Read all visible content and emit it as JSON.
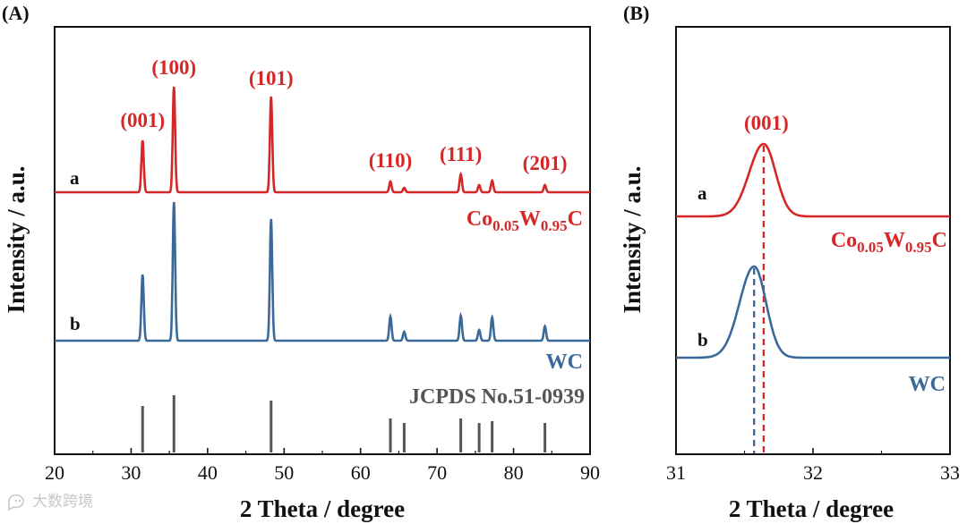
{
  "colors": {
    "red": "#d62728",
    "blue": "#3b6a9a",
    "gray": "#555555",
    "axis": "#111111"
  },
  "watermark": "大数跨境",
  "watermark_icon": "chat-bubble-icon",
  "chart_data": [
    {
      "panel": "(A)",
      "type": "line",
      "xlabel": "2 Theta / degree",
      "ylabel": "Intensity / a.u.",
      "xlim": [
        20,
        90
      ],
      "xticks": [
        20,
        30,
        40,
        50,
        60,
        70,
        80,
        90
      ],
      "yticks": [],
      "series": [
        {
          "id": "a",
          "letter": "a",
          "name_main": "Co",
          "name_sub1": "0.05",
          "name_mid": "W",
          "name_sub2": "0.95",
          "name_end": "C",
          "color": "#d62728",
          "baseline": 62,
          "width_deg": 0.22,
          "peaks": [
            [
              31.5,
              58
            ],
            [
              35.6,
              118
            ],
            [
              48.3,
              107
            ],
            [
              63.9,
              12
            ],
            [
              65.7,
              5
            ],
            [
              73.1,
              20
            ],
            [
              75.5,
              8
            ],
            [
              77.2,
              13
            ],
            [
              84.1,
              8
            ]
          ]
        },
        {
          "id": "b",
          "letter": "b",
          "name": "WC",
          "color": "#3b6a9a",
          "baseline": 30,
          "width_deg": 0.22,
          "peaks": [
            [
              31.5,
              74
            ],
            [
              35.6,
              155
            ],
            [
              48.3,
              136
            ],
            [
              63.9,
              27
            ],
            [
              65.7,
              10
            ],
            [
              73.1,
              28
            ],
            [
              75.5,
              12
            ],
            [
              77.2,
              26
            ],
            [
              84.1,
              16
            ]
          ]
        }
      ],
      "hkl_labels": [
        {
          "label": "(001)",
          "x": 31.5
        },
        {
          "label": "(100)",
          "x": 35.6
        },
        {
          "label": "(101)",
          "x": 48.3
        },
        {
          "label": "(110)",
          "x": 63.9
        },
        {
          "label": "(111)",
          "x": 73.1
        },
        {
          "label": "(201)",
          "x": 84.1
        }
      ],
      "reference": {
        "name": "JCPDS No.51-0939",
        "lines": [
          [
            31.5,
            52
          ],
          [
            35.6,
            64
          ],
          [
            48.3,
            58
          ],
          [
            63.9,
            38
          ],
          [
            65.7,
            33
          ],
          [
            73.1,
            38
          ],
          [
            75.5,
            33
          ],
          [
            77.2,
            35
          ],
          [
            84.1,
            33
          ]
        ]
      }
    },
    {
      "panel": "(B)",
      "type": "line",
      "xlabel": "2 Theta / degree",
      "ylabel": "Intensity / a.u.",
      "xlim": [
        31,
        33
      ],
      "xticks": [
        31,
        32,
        33
      ],
      "yticks": [],
      "series": [
        {
          "id": "a",
          "letter": "a",
          "name_main": "Co",
          "name_sub1": "0.05",
          "name_mid": "W",
          "name_sub2": "0.95",
          "name_end": "C",
          "color": "#d62728",
          "baseline": 56,
          "width_deg": 0.13,
          "peak_x": 31.64,
          "peak_height": 81,
          "dashed_line_x": 31.64
        },
        {
          "id": "b",
          "letter": "b",
          "name": "WC",
          "color": "#3b6a9a",
          "baseline": 20,
          "width_deg": 0.13,
          "peak_x": 31.57,
          "peak_height": 102,
          "dashed_line_x": 31.57
        }
      ],
      "hkl_labels": [
        {
          "label": "(001)",
          "x": 31.64
        }
      ]
    }
  ]
}
